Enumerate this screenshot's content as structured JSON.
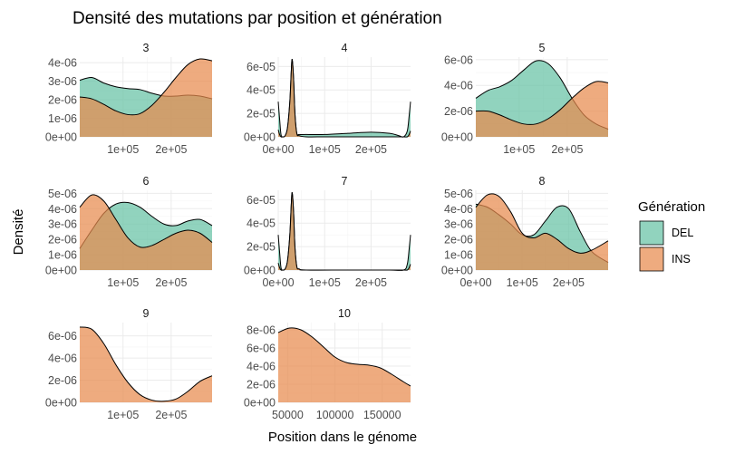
{
  "chart_data": {
    "type": "area",
    "title": "Densité des mutations par position et génération",
    "xlabel": "Position dans le génome",
    "ylabel": "Densité",
    "legend": {
      "title": "Génération",
      "position": "right",
      "entries": [
        {
          "name": "DEL",
          "color": "#66c2a5"
        },
        {
          "name": "INS",
          "color": "#e78a4e"
        }
      ]
    },
    "panels": [
      {
        "label": "3",
        "xlim": [
          10000,
          285000
        ],
        "ylim": [
          0,
          4.3e-06
        ],
        "xticks": [
          100000,
          200000
        ],
        "xtick_labels": [
          "1e+05",
          "2e+05"
        ],
        "yticks": [
          0,
          1e-06,
          2e-06,
          3e-06,
          4e-06
        ],
        "ytick_labels": [
          "0e+00",
          "1e-06",
          "2e-06",
          "3e-06",
          "4e-06"
        ],
        "series": [
          {
            "name": "DEL",
            "x": [
              10000,
              35000,
              60000,
              85000,
              110000,
              135000,
              160000,
              185000,
              210000,
              235000,
              260000,
              285000
            ],
            "y": [
              3.05e-06,
              3.2e-06,
              2.9e-06,
              2.7e-06,
              2.6e-06,
              2.55e-06,
              2.35e-06,
              2.2e-06,
              2.2e-06,
              2.25e-06,
              2.2e-06,
              2.05e-06
            ]
          },
          {
            "name": "INS",
            "x": [
              10000,
              35000,
              60000,
              85000,
              110000,
              135000,
              160000,
              185000,
              210000,
              235000,
              260000,
              285000
            ],
            "y": [
              2.15e-06,
              2.05e-06,
              1.75e-06,
              1.4e-06,
              1.2e-06,
              1.25e-06,
              1.7e-06,
              2.4e-06,
              3.2e-06,
              3.9e-06,
              4.2e-06,
              4.1e-06
            ]
          }
        ]
      },
      {
        "label": "4",
        "xlim": [
          0,
          285000
        ],
        "ylim": [
          0,
          6.8e-05
        ],
        "xticks": [
          0,
          100000,
          200000
        ],
        "xtick_labels": [
          "0e+00",
          "1e+05",
          "2e+05"
        ],
        "yticks": [
          0,
          2e-05,
          4e-05,
          6e-05
        ],
        "ytick_labels": [
          "0e+00",
          "2e-05",
          "4e-05",
          "6e-05"
        ],
        "series": [
          {
            "name": "DEL",
            "x": [
              0,
              3000,
              6000,
              10000,
              15000,
              20000,
              25000,
              28000,
              30000,
              33000,
              36000,
              40000,
              45000,
              60000,
              100000,
              150000,
              200000,
              240000,
              260000,
              270000,
              278000,
              282000,
              285000
            ],
            "y": [
              3e-05,
              1.5e-05,
              2e-06,
              0,
              1e-06,
              8e-06,
              3e-05,
              5.5e-05,
              6.6e-05,
              5e-05,
              2e-05,
              3e-06,
              2e-06,
              2e-06,
              2e-06,
              3e-06,
              4e-06,
              3e-06,
              1e-06,
              0,
              5e-06,
              1.8e-05,
              3e-05
            ]
          },
          {
            "name": "INS",
            "x": [
              0,
              3000,
              6000,
              10000,
              15000,
              20000,
              25000,
              28000,
              30000,
              33000,
              36000,
              40000,
              45000,
              60000,
              100000,
              150000,
              200000,
              240000,
              260000,
              270000,
              278000,
              282000,
              285000
            ],
            "y": [
              6e-06,
              2e-06,
              0,
              0,
              1e-06,
              8e-06,
              3e-05,
              5.5e-05,
              6.6e-05,
              5e-05,
              2e-05,
              3e-06,
              1e-06,
              0,
              0,
              0,
              0,
              0,
              0,
              0,
              0,
              2e-06,
              5e-06
            ]
          }
        ]
      },
      {
        "label": "5",
        "xlim": [
          10000,
          285000
        ],
        "ylim": [
          0,
          6.2e-06
        ],
        "xticks": [
          100000,
          200000
        ],
        "xtick_labels": [
          "1e+05",
          "2e+05"
        ],
        "yticks": [
          0,
          2e-06,
          4e-06,
          6e-06
        ],
        "ytick_labels": [
          "0e+00",
          "2e-06",
          "4e-06",
          "6e-06"
        ],
        "series": [
          {
            "name": "DEL",
            "x": [
              10000,
              35000,
              60000,
              85000,
              110000,
              135000,
              160000,
              185000,
              210000,
              235000,
              260000,
              285000
            ],
            "y": [
              3e-06,
              3.6e-06,
              3.9e-06,
              4.4e-06,
              5.2e-06,
              5.9e-06,
              5.7e-06,
              4.6e-06,
              3e-06,
              1.7e-06,
              1e-06,
              6e-07
            ]
          },
          {
            "name": "INS",
            "x": [
              10000,
              35000,
              60000,
              85000,
              110000,
              135000,
              160000,
              185000,
              210000,
              235000,
              260000,
              285000
            ],
            "y": [
              2e-06,
              2e-06,
              1.7e-06,
              1.3e-06,
              1e-06,
              1e-06,
              1.4e-06,
              2.1e-06,
              3e-06,
              3.8e-06,
              4.3e-06,
              4.2e-06
            ]
          }
        ]
      },
      {
        "label": "6",
        "xlim": [
          10000,
          285000
        ],
        "ylim": [
          0,
          5.2e-06
        ],
        "xticks": [
          100000,
          200000
        ],
        "xtick_labels": [
          "1e+05",
          "2e+05"
        ],
        "yticks": [
          0,
          1e-06,
          2e-06,
          3e-06,
          4e-06,
          5e-06
        ],
        "ytick_labels": [
          "0e+00",
          "1e-06",
          "2e-06",
          "3e-06",
          "4e-06",
          "5e-06"
        ],
        "series": [
          {
            "name": "DEL",
            "x": [
              10000,
              35000,
              60000,
              85000,
              110000,
              135000,
              160000,
              185000,
              210000,
              235000,
              260000,
              285000
            ],
            "y": [
              1.4e-06,
              2.6e-06,
              3.7e-06,
              4.3e-06,
              4.4e-06,
              4.1e-06,
              3.5e-06,
              3e-06,
              2.9e-06,
              3.2e-06,
              3.3e-06,
              2.9e-06
            ]
          },
          {
            "name": "INS",
            "x": [
              10000,
              35000,
              60000,
              85000,
              110000,
              135000,
              160000,
              185000,
              210000,
              235000,
              260000,
              285000
            ],
            "y": [
              4.1e-06,
              4.9e-06,
              4.5e-06,
              3.3e-06,
              2.1e-06,
              1.5e-06,
              1.6e-06,
              2e-06,
              2.4e-06,
              2.6e-06,
              2.4e-06,
              1.8e-06
            ]
          }
        ]
      },
      {
        "label": "7",
        "xlim": [
          0,
          285000
        ],
        "ylim": [
          0,
          6.8e-05
        ],
        "xticks": [
          0,
          100000,
          200000
        ],
        "xtick_labels": [
          "0e+00",
          "1e+05",
          "2e+05"
        ],
        "yticks": [
          0,
          2e-05,
          4e-05,
          6e-05
        ],
        "ytick_labels": [
          "0e+00",
          "2e-05",
          "4e-05",
          "6e-05"
        ],
        "series": [
          {
            "name": "DEL",
            "x": [
              0,
              3000,
              6000,
              10000,
              15000,
              20000,
              25000,
              28000,
              30000,
              33000,
              36000,
              40000,
              45000,
              60000,
              150000,
              240000,
              270000,
              278000,
              282000,
              285000
            ],
            "y": [
              3e-05,
              1.5e-05,
              2e-06,
              0,
              1e-06,
              8e-06,
              3e-05,
              5.5e-05,
              6.6e-05,
              5e-05,
              2e-05,
              3e-06,
              5e-07,
              0,
              0,
              0,
              0,
              5e-06,
              1.8e-05,
              3e-05
            ]
          },
          {
            "name": "INS",
            "x": [
              0,
              3000,
              6000,
              10000,
              15000,
              20000,
              25000,
              28000,
              30000,
              33000,
              36000,
              40000,
              45000,
              60000,
              150000,
              240000,
              270000,
              278000,
              282000,
              285000
            ],
            "y": [
              6e-06,
              2e-06,
              0,
              0,
              1e-06,
              8e-06,
              3e-05,
              5.5e-05,
              6.6e-05,
              5e-05,
              2e-05,
              3e-06,
              1e-06,
              0,
              0,
              0,
              0,
              0,
              2e-06,
              5e-06
            ]
          }
        ]
      },
      {
        "label": "8",
        "xlim": [
          0,
          285000
        ],
        "ylim": [
          0,
          5.2e-06
        ],
        "xticks": [
          0,
          100000,
          200000
        ],
        "xtick_labels": [
          "0e+00",
          "1e+05",
          "2e+05"
        ],
        "yticks": [
          0,
          1e-06,
          2e-06,
          3e-06,
          4e-06,
          5e-06
        ],
        "ytick_labels": [
          "0e+00",
          "1e-06",
          "2e-06",
          "3e-06",
          "4e-06",
          "5e-06"
        ],
        "series": [
          {
            "name": "DEL",
            "x": [
              0,
              25000,
              50000,
              75000,
              100000,
              125000,
              150000,
              175000,
              200000,
              225000,
              250000,
              285000
            ],
            "y": [
              4.3e-06,
              4.1e-06,
              3.6e-06,
              3e-06,
              2.3e-06,
              2.3e-06,
              3.2e-06,
              4.1e-06,
              4e-06,
              2.5e-06,
              1.2e-06,
              5e-07
            ]
          },
          {
            "name": "INS",
            "x": [
              0,
              25000,
              50000,
              75000,
              100000,
              125000,
              150000,
              175000,
              200000,
              225000,
              250000,
              285000
            ],
            "y": [
              4.1e-06,
              4.9e-06,
              4.8e-06,
              3.8e-06,
              2.4e-06,
              2.1e-06,
              2.4e-06,
              2e-06,
              1.4e-06,
              1.1e-06,
              1.3e-06,
              1.9e-06
            ]
          }
        ]
      },
      {
        "label": "9",
        "xlim": [
          10000,
          285000
        ],
        "ylim": [
          0,
          7.2e-06
        ],
        "xticks": [
          100000,
          200000
        ],
        "xtick_labels": [
          "1e+05",
          "2e+05"
        ],
        "yticks": [
          0,
          2e-06,
          4e-06,
          6e-06
        ],
        "ytick_labels": [
          "0e+00",
          "2e-06",
          "4e-06",
          "6e-06"
        ],
        "series": [
          {
            "name": "INS",
            "x": [
              10000,
              35000,
              60000,
              85000,
              110000,
              135000,
              160000,
              185000,
              210000,
              235000,
              260000,
              285000
            ],
            "y": [
              6.8e-06,
              6.6e-06,
              5.3e-06,
              3.4e-06,
              1.8e-06,
              7e-07,
              2e-07,
              1e-07,
              3e-07,
              1e-06,
              1.9e-06,
              2.4e-06
            ]
          }
        ]
      },
      {
        "label": "10",
        "xlim": [
          40000,
          180000
        ],
        "ylim": [
          0,
          8.8e-06
        ],
        "xticks": [
          50000,
          100000,
          150000
        ],
        "xtick_labels": [
          "50000",
          "100000",
          "150000"
        ],
        "yticks": [
          0,
          2e-06,
          4e-06,
          6e-06,
          8e-06
        ],
        "ytick_labels": [
          "0e+00",
          "2e-06",
          "4e-06",
          "6e-06",
          "8e-06"
        ],
        "series": [
          {
            "name": "INS",
            "x": [
              40000,
              52000,
              64000,
              76000,
              88000,
              100000,
              112000,
              124000,
              136000,
              148000,
              160000,
              172000,
              180000
            ],
            "y": [
              7.7e-06,
              8.2e-06,
              8e-06,
              7.2e-06,
              6.1e-06,
              5e-06,
              4.4e-06,
              4.2e-06,
              4.1e-06,
              3.8e-06,
              3.1e-06,
              2.3e-06,
              1.8e-06
            ]
          }
        ]
      }
    ]
  }
}
